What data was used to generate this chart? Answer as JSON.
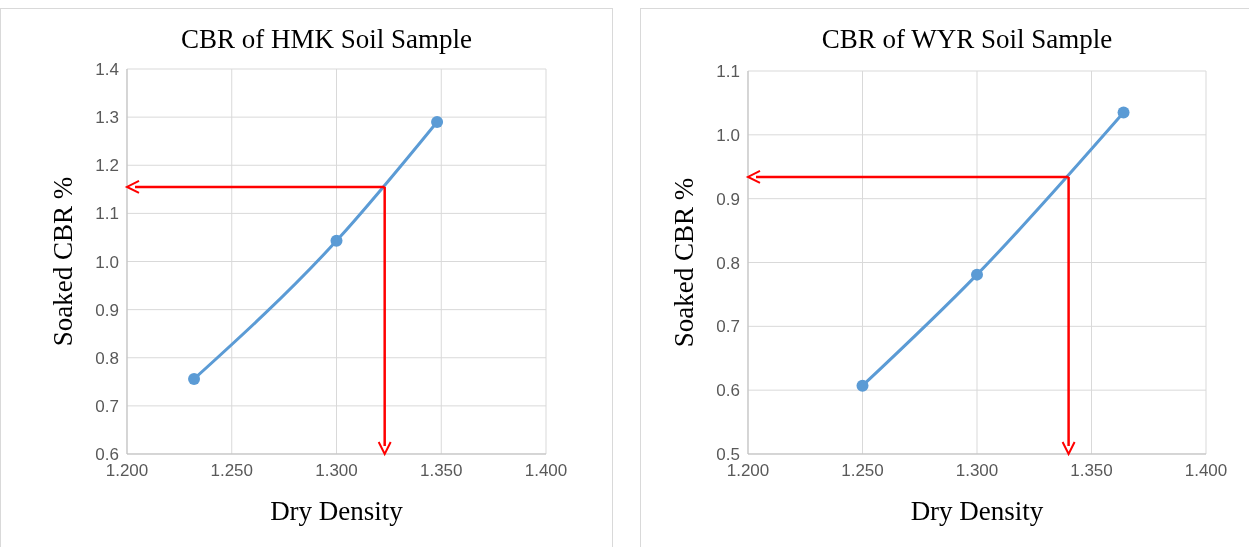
{
  "chart_data": [
    {
      "type": "line",
      "title": "CBR of HMK Soil Sample",
      "xlabel": "Dry Density",
      "ylabel": "Soaked CBR %",
      "x": [
        1.232,
        1.3,
        1.348
      ],
      "series": [
        {
          "color": "#5b9bd5",
          "values": [
            0.756,
            1.043,
            1.29
          ]
        }
      ],
      "xlim": [
        1.2,
        1.4
      ],
      "xticks": [
        {
          "value": 1.2,
          "label": "1.200"
        },
        {
          "value": 1.25,
          "label": "1.250"
        },
        {
          "value": 1.3,
          "label": "1.300"
        },
        {
          "value": 1.35,
          "label": "1.350"
        },
        {
          "value": 1.4,
          "label": "1.400"
        }
      ],
      "ylim": [
        0.6,
        1.4
      ],
      "yticks": [
        {
          "value": 0.6,
          "label": "0.6"
        },
        {
          "value": 0.7,
          "label": "0.7"
        },
        {
          "value": 0.8,
          "label": "0.8"
        },
        {
          "value": 0.9,
          "label": "0.9"
        },
        {
          "value": 1.0,
          "label": "1.0"
        },
        {
          "value": 1.1,
          "label": "1.1"
        },
        {
          "value": 1.2,
          "label": "1.2"
        },
        {
          "value": 1.3,
          "label": "1.3"
        },
        {
          "value": 1.4,
          "label": "1.4"
        }
      ],
      "grid": true,
      "marker": "circle",
      "line_style": "solid",
      "ref_lines": [
        {
          "axis": "x",
          "value": 1.323,
          "color": "#ff0000"
        },
        {
          "axis": "y",
          "value": 1.155,
          "color": "#ff0000"
        }
      ]
    },
    {
      "type": "line",
      "title": "CBR of WYR Soil Sample",
      "xlabel": "Dry Density",
      "ylabel": "Soaked CBR %",
      "x": [
        1.25,
        1.3,
        1.364
      ],
      "series": [
        {
          "color": "#5b9bd5",
          "values": [
            0.607,
            0.781,
            1.035
          ]
        }
      ],
      "xlim": [
        1.2,
        1.4
      ],
      "xticks": [
        {
          "value": 1.2,
          "label": "1.200"
        },
        {
          "value": 1.25,
          "label": "1.250"
        },
        {
          "value": 1.3,
          "label": "1.300"
        },
        {
          "value": 1.35,
          "label": "1.350"
        },
        {
          "value": 1.4,
          "label": "1.400"
        }
      ],
      "ylim": [
        0.5,
        1.1
      ],
      "yticks": [
        {
          "value": 0.5,
          "label": "0.5"
        },
        {
          "value": 0.6,
          "label": "0.6"
        },
        {
          "value": 0.7,
          "label": "0.7"
        },
        {
          "value": 0.8,
          "label": "0.8"
        },
        {
          "value": 0.9,
          "label": "0.9"
        },
        {
          "value": 1.0,
          "label": "1.0"
        },
        {
          "value": 1.1,
          "label": "1.1"
        }
      ],
      "grid": true,
      "marker": "circle",
      "line_style": "solid",
      "ref_lines": [
        {
          "axis": "x",
          "value": 1.34,
          "color": "#ff0000"
        },
        {
          "axis": "y",
          "value": 0.934,
          "color": "#ff0000"
        }
      ]
    }
  ]
}
